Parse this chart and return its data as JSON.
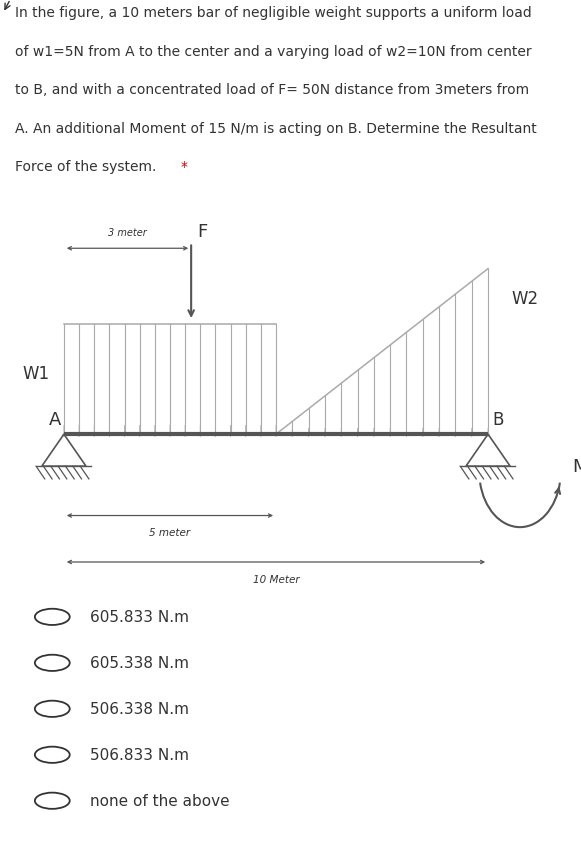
{
  "beam_color": "#555555",
  "load_color": "#aaaaaa",
  "text_color": "#333333",
  "lines": [
    "In the figure, a 10 meters bar of negligible weight supports a uniform load",
    "of w1=5N from A to the center and a varying load of w2=10N from center",
    "to B, and with a concentrated load of F= 50N distance from 3meters from",
    "A. An additional Moment of 15 N/m is acting on B. Determine the Resultant",
    "Force of the system."
  ],
  "choices": [
    "605.833 N.m",
    "605.338 N.m",
    "506.338 N.m",
    "506.833 N.m",
    "none of the above"
  ]
}
